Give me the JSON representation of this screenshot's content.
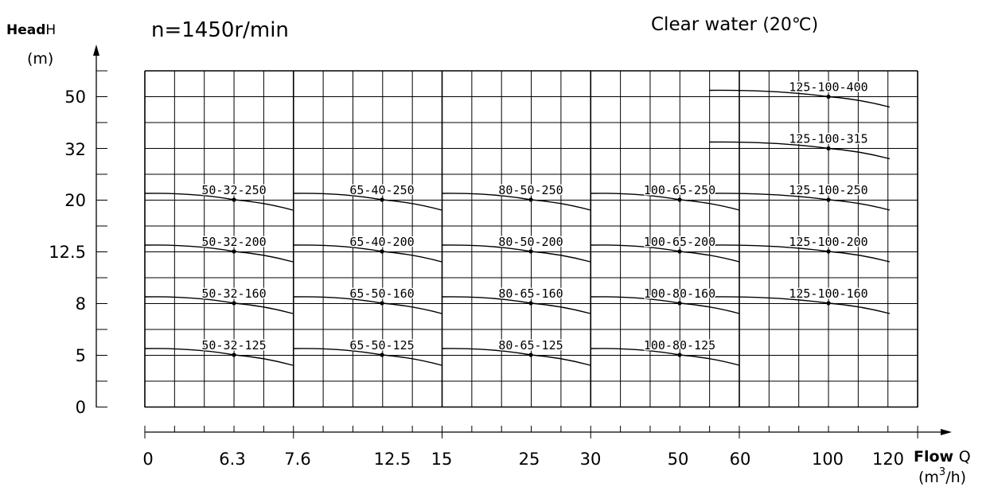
{
  "chart_data": {
    "type": "line",
    "y_axis": {
      "label": "Head",
      "symbol": "H",
      "unit": "(m)",
      "ticks": [
        "50",
        "32",
        "20",
        "12.5",
        "8",
        "5",
        "0"
      ]
    },
    "x_axis": {
      "label": "Flow",
      "symbol": "Q",
      "unit_base": "(m",
      "unit_exp": "3",
      "unit_tail": "/h)",
      "ticks": [
        "0",
        "6.3",
        "7.6",
        "12.5",
        "15",
        "25",
        "30",
        "50",
        "60",
        "100",
        "120"
      ]
    },
    "speed": "n=1450r/min",
    "medium": "Clear water",
    "medium_temp": "(20℃)",
    "grid": true,
    "series": [
      {
        "name": "50-32-250",
        "group": 0,
        "head": "20"
      },
      {
        "name": "50-32-200",
        "group": 0,
        "head": "12.5"
      },
      {
        "name": "50-32-160",
        "group": 0,
        "head": "8"
      },
      {
        "name": "50-32-125",
        "group": 0,
        "head": "5"
      },
      {
        "name": "65-40-250",
        "group": 1,
        "head": "20"
      },
      {
        "name": "65-40-200",
        "group": 1,
        "head": "12.5"
      },
      {
        "name": "65-50-160",
        "group": 1,
        "head": "8"
      },
      {
        "name": "65-50-125",
        "group": 1,
        "head": "5"
      },
      {
        "name": "80-50-250",
        "group": 2,
        "head": "20"
      },
      {
        "name": "80-50-200",
        "group": 2,
        "head": "12.5"
      },
      {
        "name": "80-65-160",
        "group": 2,
        "head": "8"
      },
      {
        "name": "80-65-125",
        "group": 2,
        "head": "5"
      },
      {
        "name": "100-65-250",
        "group": 3,
        "head": "20"
      },
      {
        "name": "100-65-200",
        "group": 3,
        "head": "12.5"
      },
      {
        "name": "100-80-160",
        "group": 3,
        "head": "8"
      },
      {
        "name": "100-80-125",
        "group": 3,
        "head": "5"
      },
      {
        "name": "125-100-400",
        "group": 4,
        "head": "50"
      },
      {
        "name": "125-100-315",
        "group": 4,
        "head": "32"
      },
      {
        "name": "125-100-250",
        "group": 4,
        "head": "20"
      },
      {
        "name": "125-100-200",
        "group": 4,
        "head": "12.5"
      },
      {
        "name": "125-100-160",
        "group": 4,
        "head": "8"
      }
    ]
  }
}
